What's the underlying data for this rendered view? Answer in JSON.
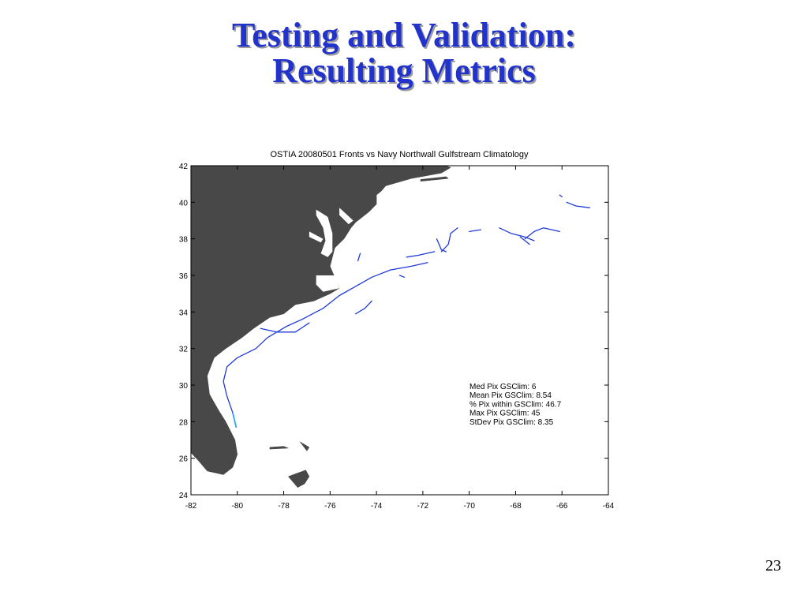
{
  "slide": {
    "title_line1": "Testing and Validation:",
    "title_line2": "Resulting Metrics",
    "page_number": "23"
  },
  "colors": {
    "title": "#2233cc",
    "land": "#484848",
    "front": "#1f3bd6",
    "front_highlight": "#2aa6ff"
  },
  "chart_data": {
    "type": "map",
    "title": "OSTIA 20080501 Fronts vs Navy Northwall Gulfstream Climatology",
    "xlim": [
      -82,
      -64
    ],
    "ylim": [
      24,
      42
    ],
    "xticks": [
      -82,
      -80,
      -78,
      -76,
      -74,
      -72,
      -70,
      -68,
      -66,
      -64
    ],
    "yticks": [
      24,
      26,
      28,
      30,
      32,
      34,
      36,
      38,
      40,
      42
    ],
    "grid": false,
    "legend": "none",
    "annotations": [
      "Med Pix GSClim: 6",
      "Mean Pix GSClim: 8.54",
      "% Pix within GSClim: 46.7",
      "Max Pix GSClim: 45",
      "StDev Pix GSClim: 8.35"
    ],
    "land": [
      [
        [
          -82,
          42
        ],
        [
          -71.0,
          42
        ],
        [
          -70.8,
          41.9
        ],
        [
          -71.2,
          41.6
        ],
        [
          -72.5,
          41.3
        ],
        [
          -73.6,
          40.9
        ],
        [
          -73.8,
          40.6
        ],
        [
          -74.0,
          40.4
        ],
        [
          -74.0,
          39.9
        ],
        [
          -74.3,
          39.5
        ],
        [
          -74.9,
          38.9
        ],
        [
          -75.1,
          38.6
        ],
        [
          -75.4,
          38.0
        ],
        [
          -75.8,
          37.5
        ],
        [
          -75.9,
          37.0
        ],
        [
          -76.0,
          36.5
        ],
        [
          -75.6,
          35.3
        ],
        [
          -76.0,
          35.0
        ],
        [
          -76.7,
          34.6
        ],
        [
          -77.5,
          34.4
        ],
        [
          -78.0,
          33.9
        ],
        [
          -78.6,
          33.7
        ],
        [
          -79.3,
          33.1
        ],
        [
          -79.8,
          32.6
        ],
        [
          -80.5,
          32.0
        ],
        [
          -81.0,
          31.5
        ],
        [
          -81.3,
          30.5
        ],
        [
          -81.2,
          29.5
        ],
        [
          -80.8,
          28.6
        ],
        [
          -80.5,
          28.0
        ],
        [
          -80.1,
          27.0
        ],
        [
          -80.0,
          26.2
        ],
        [
          -80.2,
          25.5
        ],
        [
          -80.6,
          25.1
        ],
        [
          -81.3,
          25.3
        ],
        [
          -81.7,
          25.9
        ],
        [
          -82,
          26.3
        ],
        [
          -82,
          42
        ]
      ],
      [
        [
          -72.1,
          41.25
        ],
        [
          -71.0,
          41.4
        ],
        [
          -70.9,
          41.3
        ],
        [
          -72.1,
          41.15
        ],
        [
          -72.1,
          41.25
        ]
      ],
      [
        [
          -77.05,
          25.35
        ],
        [
          -77.8,
          25.0
        ],
        [
          -77.6,
          24.7
        ],
        [
          -77.4,
          24.4
        ],
        [
          -77.1,
          24.6
        ],
        [
          -76.9,
          25.0
        ],
        [
          -77.05,
          25.35
        ]
      ],
      [
        [
          -78.6,
          26.6
        ],
        [
          -78.0,
          26.65
        ],
        [
          -77.8,
          26.55
        ],
        [
          -78.6,
          26.5
        ],
        [
          -78.6,
          26.6
        ]
      ],
      [
        [
          -77.3,
          26.9
        ],
        [
          -77.0,
          26.4
        ],
        [
          -76.9,
          26.6
        ],
        [
          -77.3,
          26.9
        ]
      ]
    ],
    "water": [
      [
        [
          -76.6,
          39.6
        ],
        [
          -76.1,
          39.2
        ],
        [
          -75.9,
          38.3
        ],
        [
          -75.9,
          37.3
        ],
        [
          -76.1,
          37.0
        ],
        [
          -76.4,
          37.2
        ],
        [
          -76.2,
          37.9
        ],
        [
          -76.3,
          38.6
        ],
        [
          -76.6,
          39.3
        ],
        [
          -76.6,
          39.6
        ]
      ],
      [
        [
          -75.6,
          39.7
        ],
        [
          -75.0,
          39.0
        ],
        [
          -75.2,
          38.8
        ],
        [
          -75.6,
          39.3
        ],
        [
          -75.6,
          39.7
        ]
      ],
      [
        [
          -76.9,
          38.4
        ],
        [
          -76.3,
          38.0
        ],
        [
          -76.4,
          37.8
        ],
        [
          -76.9,
          38.1
        ],
        [
          -76.9,
          38.4
        ]
      ],
      [
        [
          -76.6,
          36.0
        ],
        [
          -75.8,
          36.0
        ],
        [
          -75.6,
          35.3
        ],
        [
          -76.3,
          35.1
        ],
        [
          -76.6,
          35.5
        ],
        [
          -76.6,
          36.0
        ]
      ]
    ],
    "fronts": [
      [
        [
          -80.05,
          27.7
        ],
        [
          -80.2,
          28.5
        ],
        [
          -80.45,
          29.4
        ],
        [
          -80.6,
          30.2
        ],
        [
          -80.45,
          31.0
        ],
        [
          -80.0,
          31.5
        ],
        [
          -79.2,
          32.0
        ],
        [
          -78.7,
          32.6
        ],
        [
          -77.9,
          33.2
        ],
        [
          -77.2,
          33.6
        ],
        [
          -76.3,
          34.2
        ],
        [
          -75.6,
          34.9
        ],
        [
          -74.9,
          35.4
        ],
        [
          -74.2,
          35.9
        ],
        [
          -73.4,
          36.3
        ],
        [
          -72.5,
          36.5
        ],
        [
          -71.8,
          36.7
        ]
      ],
      [
        [
          -79.0,
          33.1
        ],
        [
          -78.3,
          32.9
        ],
        [
          -77.5,
          32.9
        ],
        [
          -76.9,
          33.4
        ]
      ],
      [
        [
          -71.5,
          37.3
        ],
        [
          -72.2,
          37.1
        ],
        [
          -72.7,
          37.0
        ]
      ],
      [
        [
          -71.4,
          38.0
        ],
        [
          -71.2,
          37.4
        ],
        [
          -71.0,
          37.3
        ]
      ],
      [
        [
          -70.5,
          38.6
        ],
        [
          -70.8,
          38.3
        ],
        [
          -70.9,
          37.7
        ],
        [
          -71.2,
          37.3
        ]
      ],
      [
        [
          -74.7,
          37.2
        ],
        [
          -74.8,
          36.8
        ]
      ],
      [
        [
          -73.0,
          36.0
        ],
        [
          -72.8,
          35.9
        ]
      ],
      [
        [
          -74.2,
          34.6
        ],
        [
          -74.5,
          34.2
        ],
        [
          -74.9,
          33.9
        ]
      ],
      [
        [
          -69.5,
          38.5
        ],
        [
          -70.0,
          38.4
        ]
      ],
      [
        [
          -68.7,
          38.6
        ],
        [
          -68.2,
          38.3
        ],
        [
          -67.6,
          38.1
        ],
        [
          -67.2,
          37.9
        ]
      ],
      [
        [
          -67.8,
          38.1
        ],
        [
          -67.4,
          37.7
        ]
      ],
      [
        [
          -67.6,
          38.0
        ],
        [
          -67.2,
          38.4
        ],
        [
          -66.8,
          38.6
        ],
        [
          -66.1,
          38.4
        ]
      ],
      [
        [
          -65.8,
          40.0
        ],
        [
          -65.4,
          39.8
        ],
        [
          -64.8,
          39.7
        ]
      ],
      [
        [
          -66.1,
          40.4
        ],
        [
          -66.0,
          40.3
        ]
      ]
    ],
    "front_highlight": [
      [
        -80.2,
        28.5
      ],
      [
        -80.05,
        27.7
      ]
    ]
  }
}
